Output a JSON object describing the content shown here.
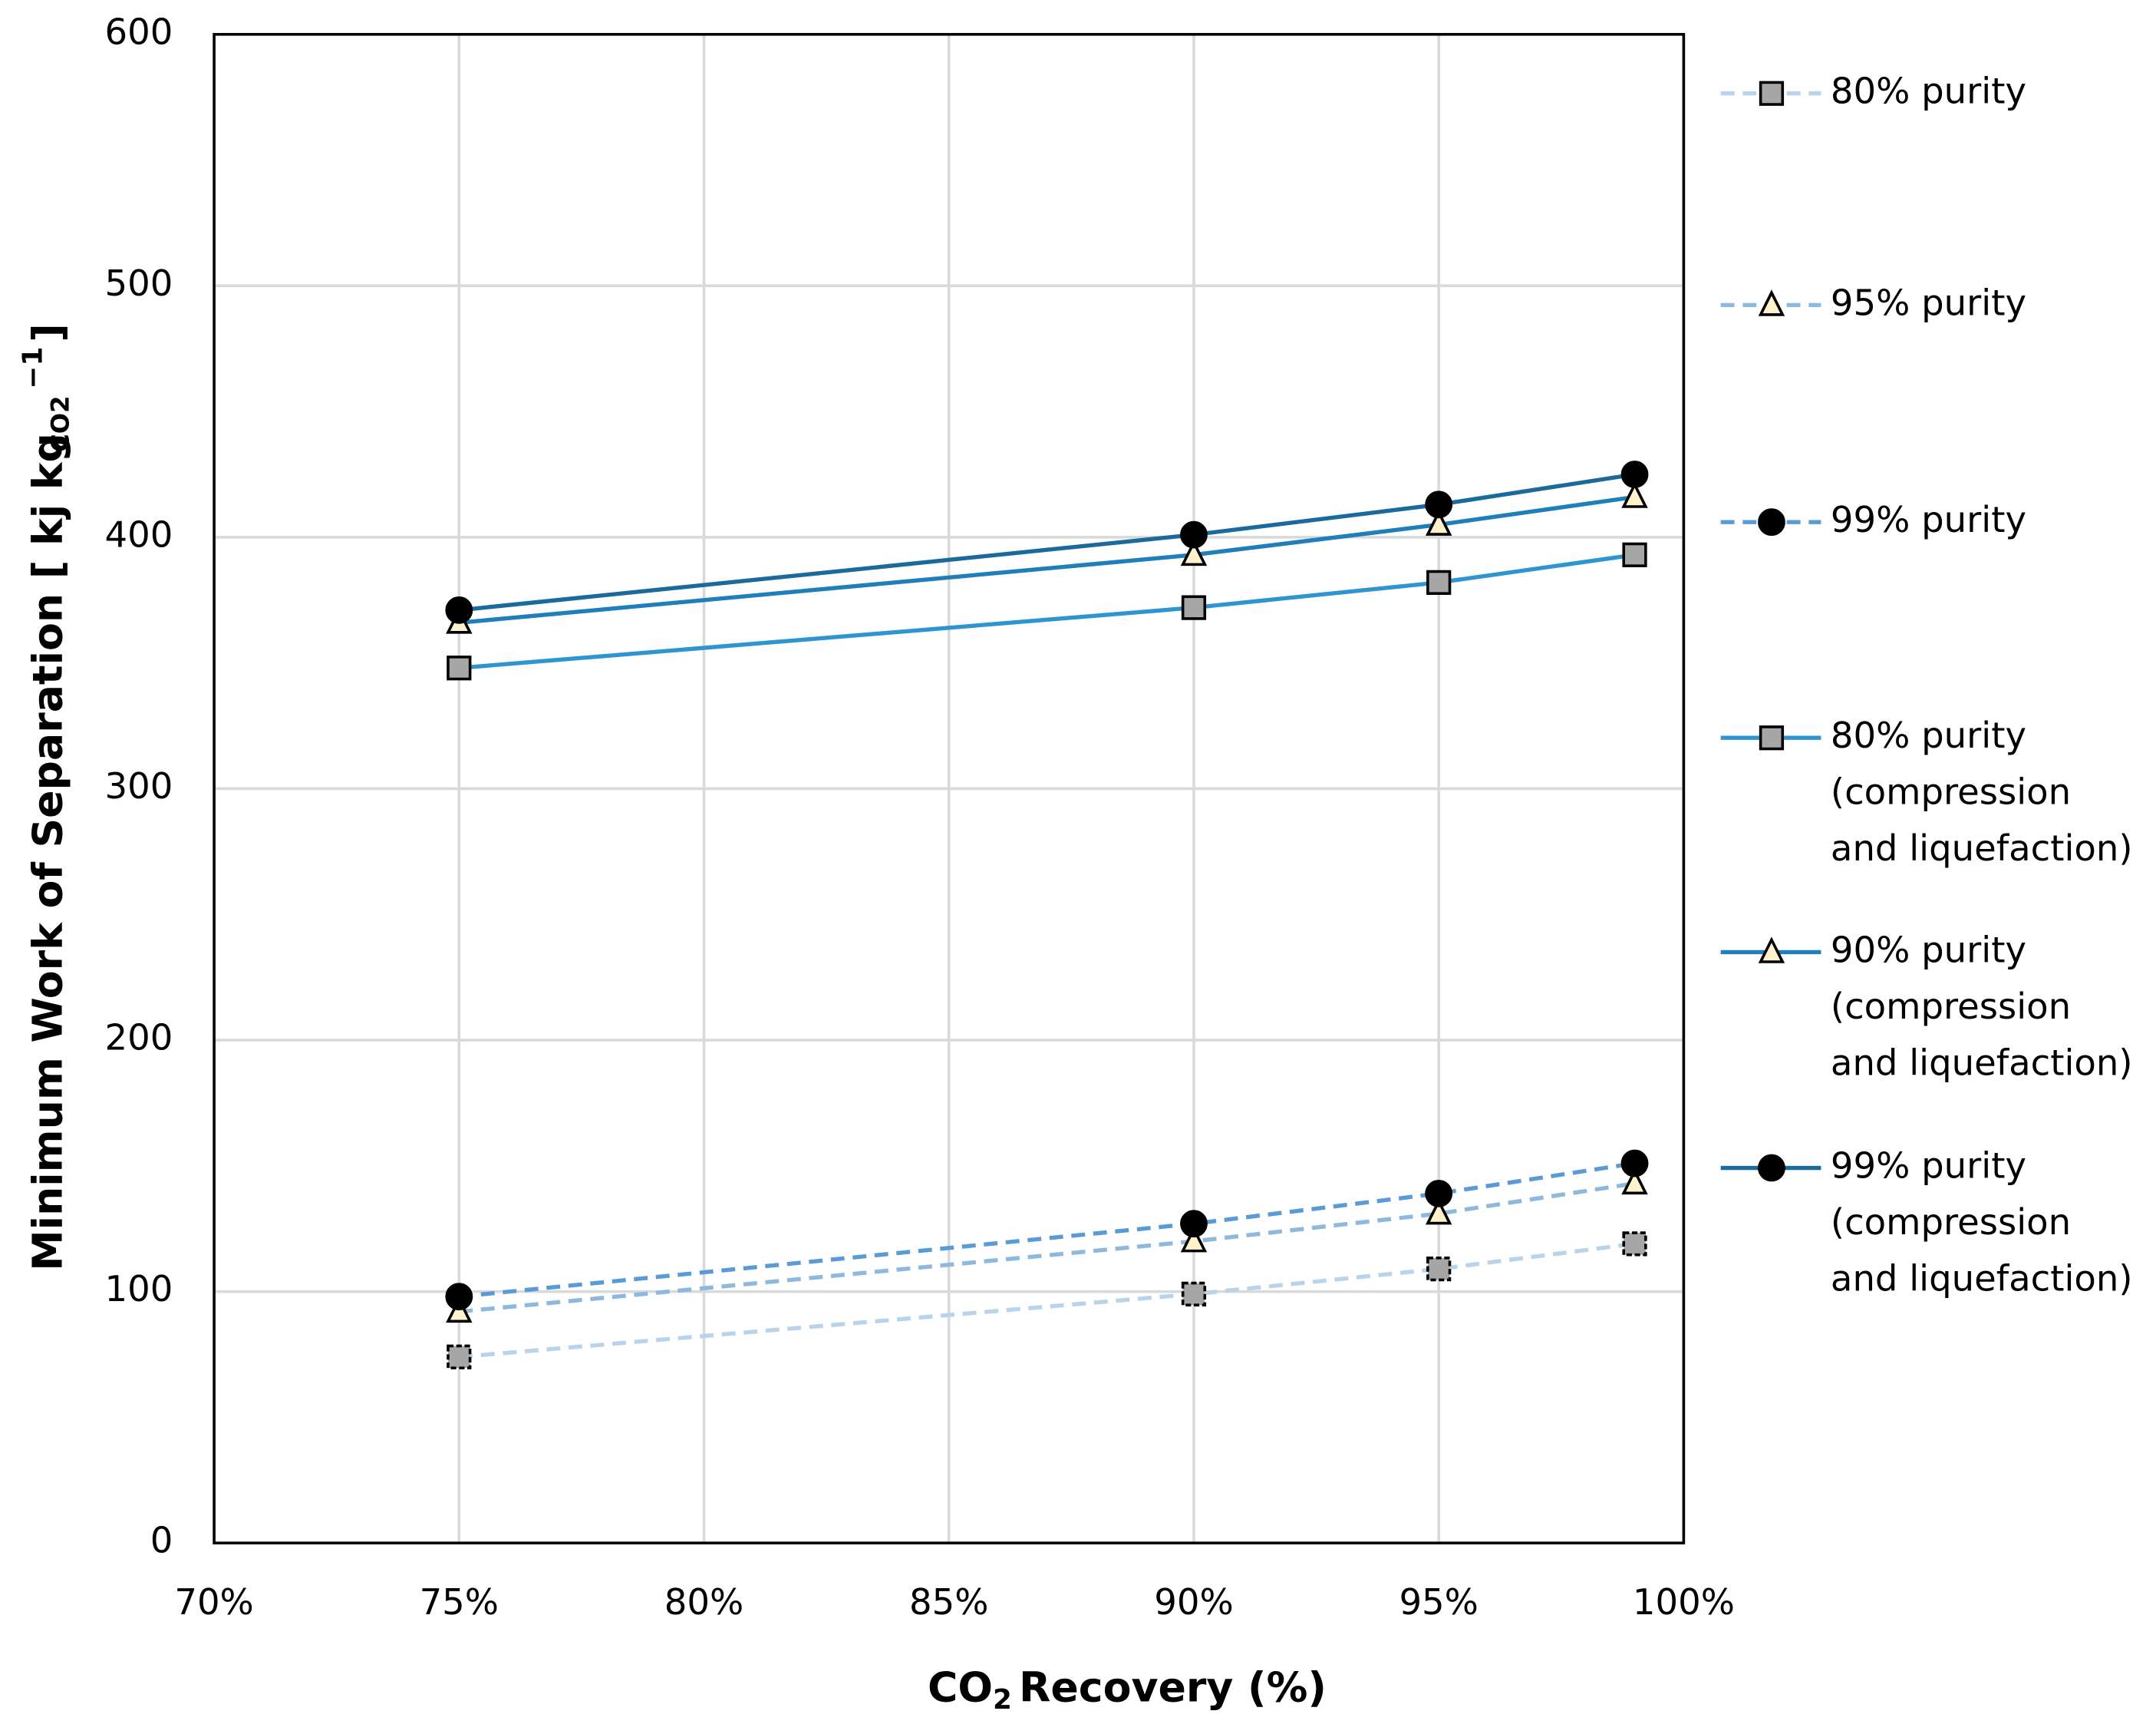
{
  "chart_data": {
    "type": "line",
    "x_label": "CO",
    "x_label_sub": "2",
    "x_label_end": "Recovery (%)",
    "y_label": "Minimum Work of Separation [ kj kg",
    "y_label_sub": "CO2",
    "y_label_sup": "−1",
    "y_label_end": "]",
    "x": [
      75,
      90,
      95,
      99
    ],
    "xlim": [
      70,
      100
    ],
    "xticks": [
      {
        "value": 70,
        "label": "70%"
      },
      {
        "value": 75,
        "label": "75%"
      },
      {
        "value": 80,
        "label": "80%"
      },
      {
        "value": 85,
        "label": "85%"
      },
      {
        "value": 90,
        "label": "90%"
      },
      {
        "value": 95,
        "label": "95%"
      },
      {
        "value": 100,
        "label": "100%"
      }
    ],
    "ylim": [
      0,
      600
    ],
    "yticks": [
      0,
      100,
      200,
      300,
      400,
      500,
      600
    ],
    "grid": true,
    "series": [
      {
        "name": "80% purity",
        "color": "#b8d3ea",
        "dashed": true,
        "marker": "square",
        "values": [
          74,
          99,
          109,
          119
        ]
      },
      {
        "name": "95% purity",
        "color": "#8fb8dd",
        "dashed": true,
        "marker": "triangle",
        "values": [
          92,
          120,
          131,
          143
        ]
      },
      {
        "name": "99% purity",
        "color": "#5b9bd5",
        "dashed": true,
        "marker": "circle",
        "values": [
          98,
          127,
          139,
          151
        ]
      },
      {
        "name": "80% purity (compression and liquefaction)",
        "color": "#2e95d0",
        "dashed": false,
        "marker": "square",
        "values": [
          348,
          372,
          382,
          393
        ]
      },
      {
        "name": "90% purity (compression and liquefaction)",
        "color": "#1f80b9",
        "dashed": false,
        "marker": "triangle",
        "values": [
          366,
          393,
          405,
          416
        ]
      },
      {
        "name": "99% purity (compression and liquefaction)",
        "color": "#1b6a9c",
        "dashed": false,
        "marker": "circle",
        "values": [
          371,
          401,
          413,
          425
        ]
      }
    ]
  }
}
